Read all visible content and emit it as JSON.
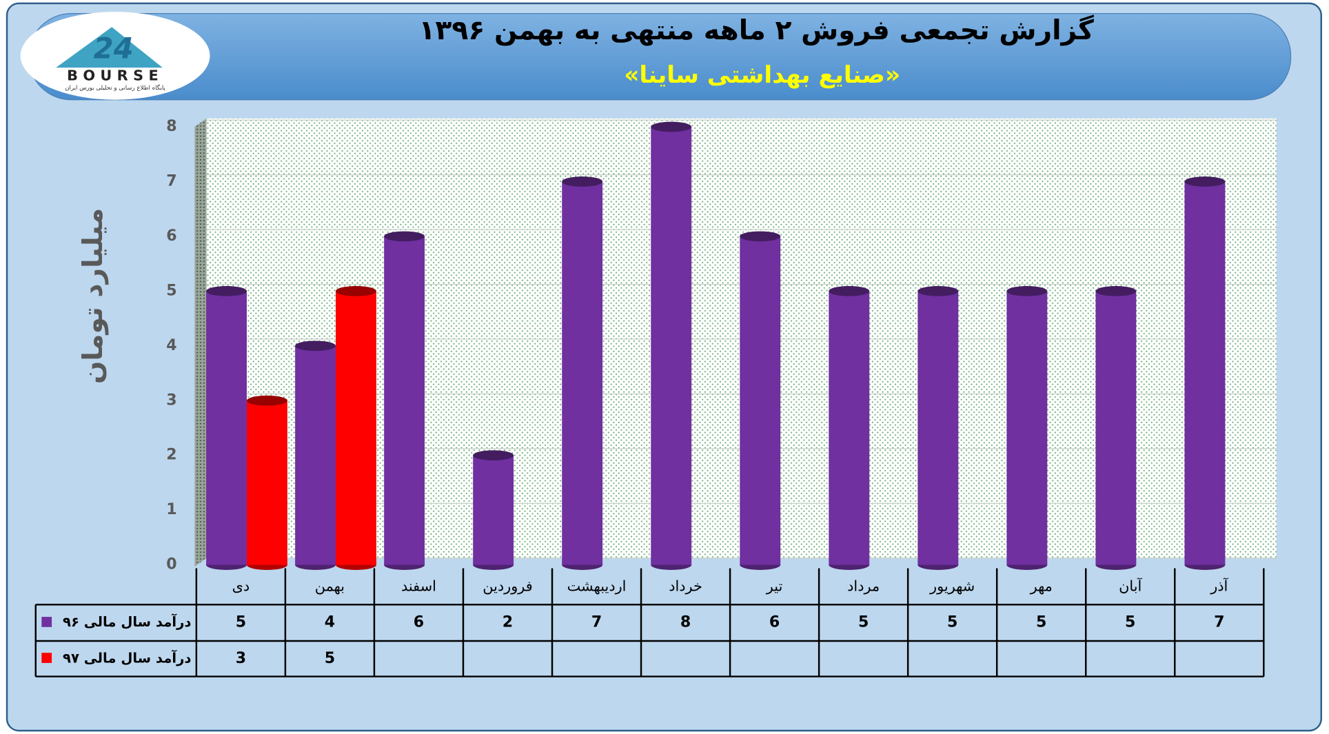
{
  "logo": {
    "name": "BOURSE",
    "tagline": "پایگاه اطلاع رسانی و تحلیلی بورس ایران"
  },
  "chart_data": {
    "type": "bar",
    "title": "گزارش تجمعی فروش ۲ ماهه منتهی به بهمن ۱۳۹۶",
    "subtitle": "«صنایع بهداشتی ساینا»",
    "y_label": "میلیارد تومان",
    "categories": [
      "دی",
      "بهمن",
      "اسفند",
      "فروردین",
      "اردیبهشت",
      "خرداد",
      "تیر",
      "مرداد",
      "شهریور",
      "مهر",
      "آبان",
      "آذر"
    ],
    "series": [
      {
        "name": "درآمد سال مالی ۹۶",
        "color": "#7030a0",
        "values": [
          5,
          4,
          6,
          2,
          7,
          8,
          6,
          5,
          5,
          5,
          5,
          7
        ]
      },
      {
        "name": "درآمد سال مالی ۹۷",
        "color": "#ff0000",
        "values": [
          3,
          5,
          null,
          null,
          null,
          null,
          null,
          null,
          null,
          null,
          null,
          null
        ]
      }
    ],
    "ylim": [
      0,
      8
    ],
    "yticks": [
      0,
      1,
      2,
      3,
      4,
      5,
      6,
      7,
      8
    ],
    "grid": true,
    "data_table": true
  }
}
